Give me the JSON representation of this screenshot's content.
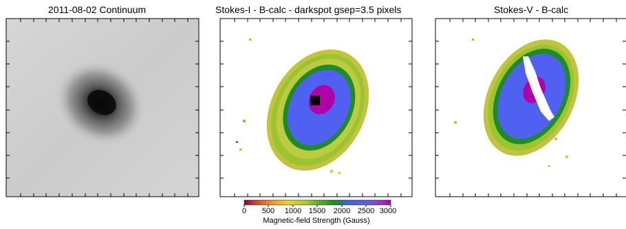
{
  "panels": [
    {
      "title": "2011-08-02  Continuum"
    },
    {
      "title": "Stokes-I - B-calc - darkspot gsep=3.5 pixels"
    },
    {
      "title": "Stokes-V - B-calc"
    }
  ],
  "colorbar": {
    "ticks": [
      "0",
      "500",
      "1000",
      "1500",
      "2000",
      "2500",
      "3000"
    ],
    "label": "Magnetic-field Strength (Gauss)",
    "range": [
      0,
      3000
    ],
    "colors": [
      "#8b1a3a",
      "#d43a2a",
      "#f08a20",
      "#f4d020",
      "#bcd430",
      "#8fc030",
      "#4a9a30",
      "#1f8a2a",
      "#2e8a6a",
      "#4a4acf",
      "#5a60f0",
      "#8a50e0",
      "#b020c0",
      "#a000a0"
    ]
  },
  "palette": {
    "magenta": "#b000a8",
    "violet": "#6a3ad8",
    "blue": "#5060f0",
    "green": "#1e8a28",
    "lime": "#9cc430",
    "olive": "#c2c440",
    "yellow": "#d8d030",
    "black": "#000000"
  }
}
